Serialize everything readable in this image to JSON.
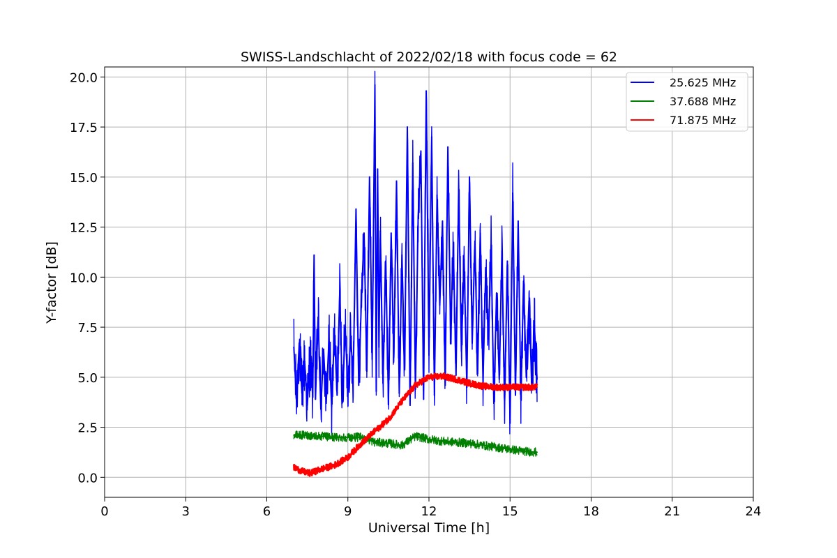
{
  "chart_data": {
    "type": "line",
    "title": "SWISS-Landschlacht of 2022/02/18 with focus code = 62",
    "xlabel": "Universal Time [h]",
    "ylabel": "Y-factor [dB]",
    "xlim": [
      0,
      24
    ],
    "ylim": [
      -1.0,
      20.5
    ],
    "xticks": [
      "0",
      "3",
      "6",
      "9",
      "12",
      "15",
      "18",
      "21",
      "24"
    ],
    "xtick_values": [
      0,
      3,
      6,
      9,
      12,
      15,
      18,
      21,
      24
    ],
    "yticks": [
      "0.0",
      "2.5",
      "5.0",
      "7.5",
      "10.0",
      "12.5",
      "15.0",
      "17.5",
      "20.0"
    ],
    "ytick_values": [
      0,
      2.5,
      5,
      7.5,
      10,
      12.5,
      15,
      17.5,
      20
    ],
    "grid": true,
    "legend_position": "top-right",
    "series": [
      {
        "name": "25.625 MHz",
        "color": "#0000ff",
        "x": [
          7.0,
          7.1,
          7.2,
          7.3,
          7.4,
          7.5,
          7.6,
          7.7,
          7.75,
          7.8,
          7.9,
          8.0,
          8.1,
          8.2,
          8.3,
          8.4,
          8.5,
          8.6,
          8.7,
          8.8,
          8.9,
          9.0,
          9.1,
          9.2,
          9.3,
          9.4,
          9.5,
          9.6,
          9.7,
          9.8,
          9.9,
          10.0,
          10.05,
          10.1,
          10.15,
          10.2,
          10.3,
          10.4,
          10.5,
          10.6,
          10.7,
          10.8,
          10.9,
          11.0,
          11.1,
          11.2,
          11.3,
          11.4,
          11.5,
          11.6,
          11.7,
          11.8,
          11.9,
          12.0,
          12.1,
          12.2,
          12.3,
          12.4,
          12.5,
          12.6,
          12.7,
          12.8,
          12.9,
          13.0,
          13.1,
          13.2,
          13.3,
          13.4,
          13.5,
          13.6,
          13.7,
          13.8,
          13.9,
          14.0,
          14.1,
          14.2,
          14.3,
          14.4,
          14.5,
          14.6,
          14.7,
          14.8,
          14.9,
          15.0,
          15.1,
          15.2,
          15.3,
          15.4,
          15.5,
          15.6,
          15.7,
          15.8,
          15.9,
          16.0
        ],
        "y": [
          6.5,
          3.8,
          6.7,
          4.2,
          5.8,
          3.6,
          6.1,
          4.0,
          11.1,
          3.9,
          8.0,
          3.4,
          6.4,
          3.7,
          6.9,
          3.5,
          7.3,
          4.1,
          9.3,
          3.8,
          7.5,
          4.4,
          7.0,
          5.1,
          13.4,
          4.6,
          8.8,
          12.2,
          5.3,
          15.0,
          5.9,
          19.6,
          4.3,
          15.4,
          6.5,
          12.3,
          4.7,
          10.8,
          3.9,
          12.2,
          6.0,
          14.8,
          4.2,
          11.1,
          5.5,
          17.5,
          3.6,
          15.7,
          4.4,
          13.0,
          16.3,
          3.9,
          19.3,
          6.1,
          17.0,
          4.1,
          14.1,
          8.6,
          12.8,
          4.6,
          16.5,
          7.2,
          11.5,
          5.1,
          14.4,
          6.3,
          10.9,
          4.5,
          15.0,
          6.7,
          11.8,
          5.2,
          12.2,
          4.8,
          10.4,
          6.9,
          11.6,
          3.7,
          9.2,
          4.9,
          11.3,
          3.8,
          10.8,
          2.7,
          14.2,
          4.1,
          12.8,
          3.9,
          9.8,
          5.0,
          8.8,
          4.7,
          7.6,
          4.9
        ],
        "noise": 1.6
      },
      {
        "name": "37.688 MHz",
        "color": "#008000",
        "x": [
          7.0,
          7.5,
          8.0,
          8.5,
          9.0,
          9.5,
          10.0,
          10.5,
          11.0,
          11.5,
          12.0,
          12.5,
          13.0,
          13.5,
          14.0,
          14.5,
          15.0,
          15.5,
          16.0
        ],
        "y": [
          2.1,
          2.1,
          2.05,
          2.0,
          2.0,
          2.0,
          1.75,
          1.7,
          1.6,
          2.05,
          1.9,
          1.8,
          1.75,
          1.7,
          1.6,
          1.5,
          1.4,
          1.3,
          1.25
        ],
        "noise": 0.22
      },
      {
        "name": "71.875 MHz",
        "color": "#ff0000",
        "x": [
          7.0,
          7.3,
          7.6,
          8.0,
          8.5,
          9.0,
          9.5,
          10.0,
          10.5,
          11.0,
          11.5,
          12.0,
          12.5,
          13.0,
          13.5,
          14.0,
          14.5,
          15.0,
          15.5,
          16.0
        ],
        "y": [
          0.5,
          0.3,
          0.2,
          0.4,
          0.6,
          1.0,
          1.7,
          2.3,
          2.9,
          3.8,
          4.6,
          5.0,
          5.05,
          4.9,
          4.7,
          4.55,
          4.5,
          4.5,
          4.5,
          4.5
        ],
        "noise": 0.16
      }
    ]
  }
}
